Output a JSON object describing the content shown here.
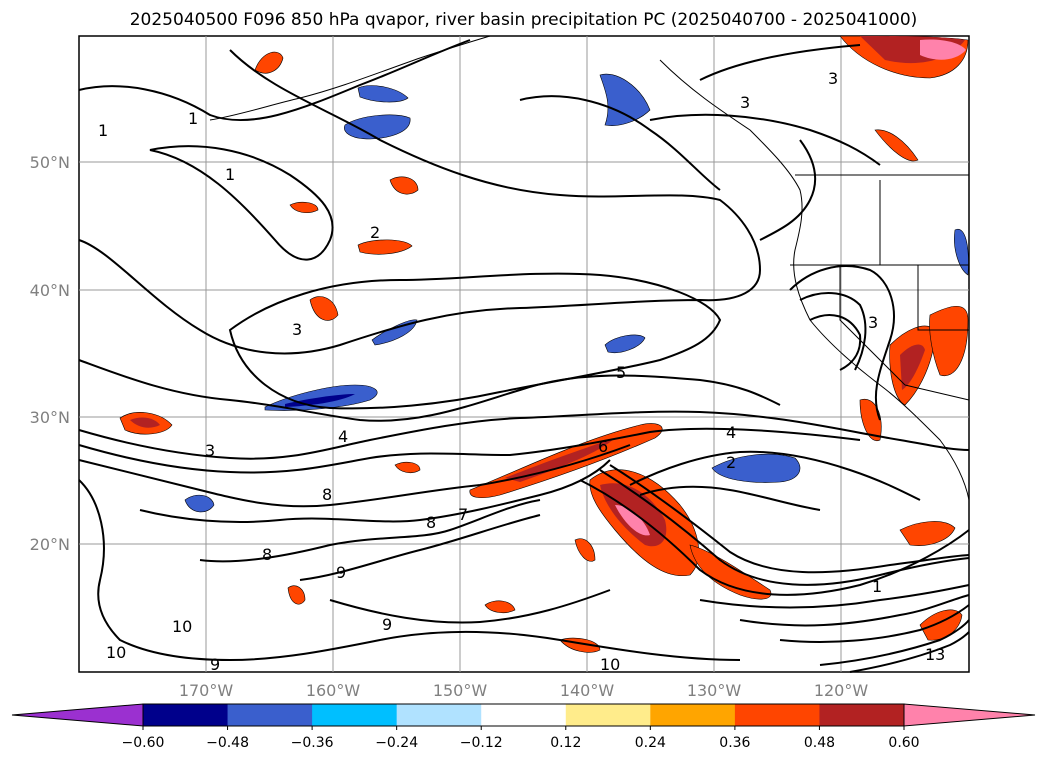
{
  "title": "2025040500 F096 850 hPa qvapor, river basin precipitation PC (2025040700 - 2025041000)",
  "map": {
    "lat_labels": [
      "50°N",
      "40°N",
      "30°N",
      "20°N"
    ],
    "lon_labels": [
      "170°W",
      "160°W",
      "150°W",
      "140°W",
      "130°W",
      "120°W"
    ],
    "contour_labels": [
      "1",
      "1",
      "1",
      "2",
      "3",
      "3",
      "3",
      "3",
      "4",
      "5",
      "6",
      "7",
      "8",
      "8",
      "8",
      "9",
      "9",
      "9",
      "10",
      "10",
      "10",
      "13",
      "1",
      "2",
      "3",
      "4"
    ]
  },
  "colorbar": {
    "ticks": [
      "−0.60",
      "−0.48",
      "−0.36",
      "−0.24",
      "−0.12",
      "0.12",
      "0.24",
      "0.36",
      "0.48",
      "0.60"
    ],
    "colors": [
      "#9b30d0",
      "#00008b",
      "#3a5fcd",
      "#00bfff",
      "#b0e2ff",
      "#ffffff",
      "#ffec8b",
      "#ffa500",
      "#ff4500",
      "#b22222",
      "#ff82ab",
      "#ff82ab"
    ]
  }
}
